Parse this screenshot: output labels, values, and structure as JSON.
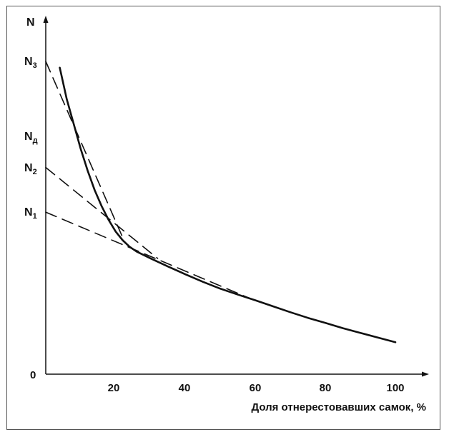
{
  "chart_data": {
    "type": "line",
    "xlabel": "Доля отнерестовавших самок, %",
    "ylabel": "N",
    "xlim": [
      0,
      100
    ],
    "x_ticks": [
      "20",
      "40",
      "60",
      "80",
      "100"
    ],
    "origin_label": "0",
    "y_marks": [
      {
        "label": "N",
        "sub": "3",
        "value": 1.0
      },
      {
        "label": "N",
        "sub": "д",
        "value": 0.755
      },
      {
        "label": "N",
        "sub": "2",
        "value": 0.661
      },
      {
        "label": "N",
        "sub": "1",
        "value": 0.518
      }
    ],
    "curve": {
      "style": "solid",
      "x": [
        4,
        6,
        8,
        10,
        12,
        14,
        16,
        18,
        20,
        22,
        24,
        26,
        30,
        35,
        40,
        45,
        50,
        55,
        60,
        65,
        70,
        75,
        80,
        85,
        90,
        95,
        100
      ],
      "y": [
        0.98,
        0.88,
        0.8,
        0.72,
        0.65,
        0.588,
        0.537,
        0.493,
        0.456,
        0.428,
        0.407,
        0.392,
        0.37,
        0.344,
        0.319,
        0.295,
        0.273,
        0.254,
        0.236,
        0.217,
        0.198,
        0.18,
        0.164,
        0.147,
        0.132,
        0.117,
        0.102
      ]
    },
    "tangents": [
      {
        "style": "dashed",
        "x": [
          0,
          22
        ],
        "y": [
          1.0,
          0.437
        ]
      },
      {
        "style": "dashed",
        "x": [
          0,
          32
        ],
        "y": [
          0.661,
          0.37
        ]
      },
      {
        "style": "dashed",
        "x": [
          0,
          61
        ],
        "y": [
          0.518,
          0.23
        ]
      }
    ],
    "colors": {
      "line": "#111111",
      "axis": "#111111",
      "frame": "#555555"
    }
  }
}
